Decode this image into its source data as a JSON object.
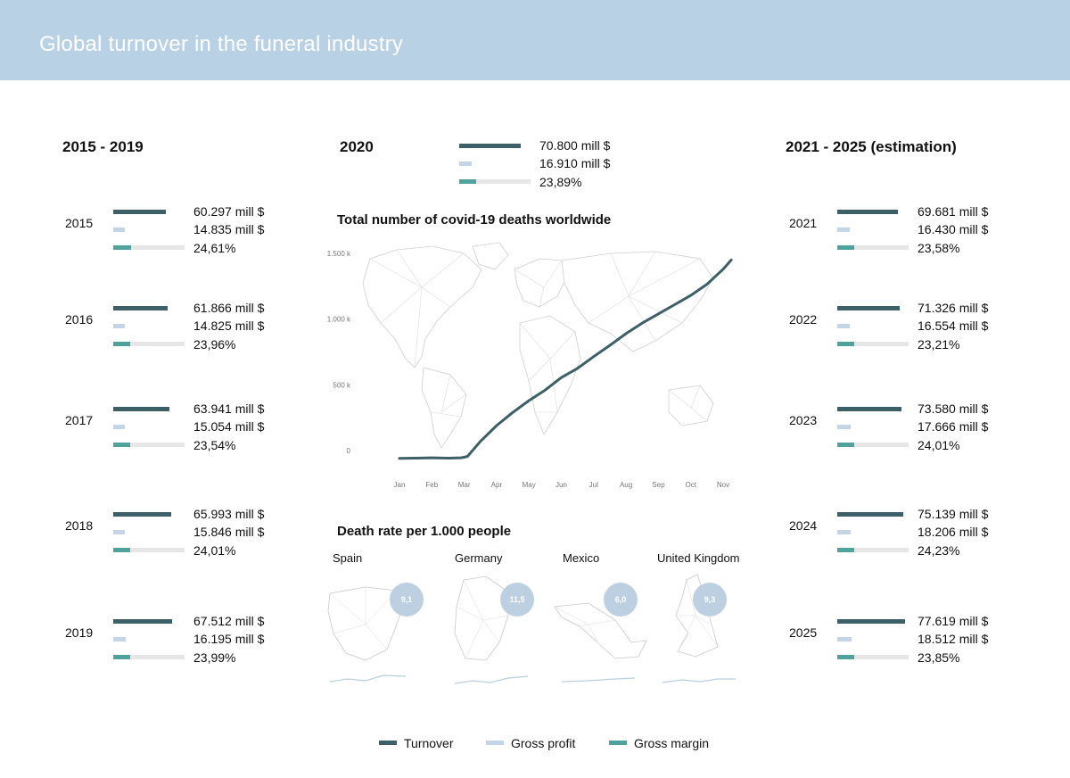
{
  "title": "Global turnover in the funeral industry",
  "colors": {
    "turnover": "#3d5f67",
    "gross_profit": "#c3d5e6",
    "gross_margin": "#4fa39c",
    "track": "#e6e6e6",
    "banner": "#b9d1e5"
  },
  "sections": {
    "left_heading": "2015 - 2019",
    "center_heading": "2020",
    "right_heading": "2021 - 2025 (estimation)"
  },
  "left_years": [
    {
      "year": "2015",
      "turnover": "60.297 mill $",
      "gross_profit": "14.835 mill $",
      "gross_margin": "24,61%",
      "turnover_value": 60297,
      "gross_profit_value": 14835,
      "gross_margin_value": 24.61
    },
    {
      "year": "2016",
      "turnover": "61.866 mill $",
      "gross_profit": "14.825 mill $",
      "gross_margin": "23,96%",
      "turnover_value": 61866,
      "gross_profit_value": 14825,
      "gross_margin_value": 23.96
    },
    {
      "year": "2017",
      "turnover": "63.941 mill $",
      "gross_profit": "15.054 mill $",
      "gross_margin": "23,54%",
      "turnover_value": 63941,
      "gross_profit_value": 15054,
      "gross_margin_value": 23.54
    },
    {
      "year": "2018",
      "turnover": "65.993 mill $",
      "gross_profit": "15.846 mill $",
      "gross_margin": "24,01%",
      "turnover_value": 65993,
      "gross_profit_value": 15846,
      "gross_margin_value": 24.01
    },
    {
      "year": "2019",
      "turnover": "67.512 mill $",
      "gross_profit": "16.195 mill $",
      "gross_margin": "23,99%",
      "turnover_value": 67512,
      "gross_profit_value": 16195,
      "gross_margin_value": 23.99
    }
  ],
  "year_2020": {
    "turnover": "70.800 mill $",
    "gross_profit": "16.910 mill $",
    "gross_margin": "23,89%",
    "turnover_value": 70800,
    "gross_profit_value": 16910,
    "gross_margin_value": 23.89
  },
  "right_years": [
    {
      "year": "2021",
      "turnover": "69.681 mill $",
      "gross_profit": "16.430 mill $",
      "gross_margin": "23,58%",
      "turnover_value": 69681,
      "gross_profit_value": 16430,
      "gross_margin_value": 23.58
    },
    {
      "year": "2022",
      "turnover": "71.326 mill $",
      "gross_profit": "16.554 mill $",
      "gross_margin": "23,21%",
      "turnover_value": 71326,
      "gross_profit_value": 16554,
      "gross_margin_value": 23.21
    },
    {
      "year": "2023",
      "turnover": "73.580 mill $",
      "gross_profit": "17.666 mill $",
      "gross_margin": "24,01%",
      "turnover_value": 73580,
      "gross_profit_value": 17666,
      "gross_margin_value": 24.01
    },
    {
      "year": "2024",
      "turnover": "75.139 mill $",
      "gross_profit": "18.206 mill $",
      "gross_margin": "24,23%",
      "turnover_value": 75139,
      "gross_profit_value": 18206,
      "gross_margin_value": 24.23
    },
    {
      "year": "2025",
      "turnover": "77.619 mill $",
      "gross_profit": "18.512 mill $",
      "gross_margin": "23,85%",
      "turnover_value": 77619,
      "gross_profit_value": 18512,
      "gross_margin_value": 23.85
    }
  ],
  "covid_chart_title": "Total number of covid-19 deaths worldwide",
  "death_rate": {
    "title": "Death rate per 1.000 people",
    "countries": [
      {
        "name": "Spain",
        "rate": "9,1"
      },
      {
        "name": "Germany",
        "rate": "11,5"
      },
      {
        "name": "Mexico",
        "rate": "6,0"
      },
      {
        "name": "United Kingdom",
        "rate": "9,3"
      }
    ]
  },
  "legend": {
    "turnover": "Turnover",
    "gross_profit": "Gross profit",
    "gross_margin": "Gross margin"
  },
  "chart_data": {
    "type": "line",
    "title": "Total number of covid-19 deaths worldwide",
    "categories": [
      "Jan",
      "Feb",
      "Mar",
      "Apr",
      "May",
      "Jun",
      "Jul",
      "Aug",
      "Sep",
      "Oct",
      "Nov"
    ],
    "y_tick_labels": [
      "0",
      "500 k",
      "1.000 k",
      "1.500 k"
    ],
    "y_ticks": [
      0,
      500,
      1000,
      1500
    ],
    "ylim": [
      0,
      1500
    ],
    "yunit": "thousand deaths",
    "series": [
      {
        "name": "Total covid-19 deaths",
        "x": [
          0,
          0.5,
          1,
          1.5,
          1.9,
          2.1,
          2.5,
          3,
          3.5,
          4,
          4.5,
          5,
          5.5,
          6,
          6.5,
          7,
          7.5,
          8,
          8.5,
          9,
          9.5,
          10,
          10.25
        ],
        "values": [
          -60,
          -58,
          -55,
          -58,
          -55,
          -45,
          70,
          190,
          290,
          380,
          460,
          555,
          625,
          715,
          800,
          890,
          970,
          1040,
          1110,
          1180,
          1265,
          1380,
          1450
        ]
      }
    ]
  }
}
